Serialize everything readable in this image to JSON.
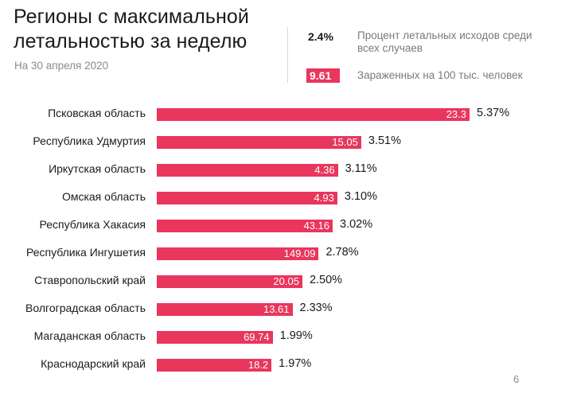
{
  "header": {
    "title": "Регионы с максимальной летальностью за неделю",
    "subtitle": "На 30 апреля 2020"
  },
  "legend": {
    "pct_example": "2.4%",
    "pct_text": "Процент летальных исходов среди всех случаев",
    "bar_example": "9.61",
    "bar_text": "Зараженных на 100 тыс. человек"
  },
  "colors": {
    "bar": "#e8365d"
  },
  "page_number": "6",
  "chart_data": {
    "type": "bar",
    "orientation": "horizontal",
    "title": "Регионы с максимальной летальностью за неделю",
    "categories": [
      "Псковская область",
      "Республика Удмуртия",
      "Иркутская область",
      "Омская область",
      "Республика Хакасия",
      "Республика Ингушетия",
      "Ставропольский край",
      "Волгоградская область",
      "Магаданская область",
      "Краснодарский край"
    ],
    "series": [
      {
        "name": "Процент летальных исходов среди всех случаев",
        "values": [
          5.37,
          3.51,
          3.11,
          3.1,
          3.02,
          2.78,
          2.5,
          2.33,
          1.99,
          1.97
        ],
        "labels": [
          "5.37%",
          "3.51%",
          "3.11%",
          "3.10%",
          "3.02%",
          "2.78%",
          "2.50%",
          "2.33%",
          "1.99%",
          "1.97%"
        ]
      },
      {
        "name": "Зараженных на 100 тыс. человек",
        "values": [
          23.3,
          15.05,
          4.36,
          4.93,
          43.16,
          149.09,
          20.05,
          13.61,
          69.74,
          18.2
        ],
        "labels": [
          "23.3",
          "15.05",
          "4.36",
          "4.93",
          "43.16",
          "149.09",
          "20.05",
          "13.61",
          "69.74",
          "18.2"
        ]
      }
    ]
  }
}
